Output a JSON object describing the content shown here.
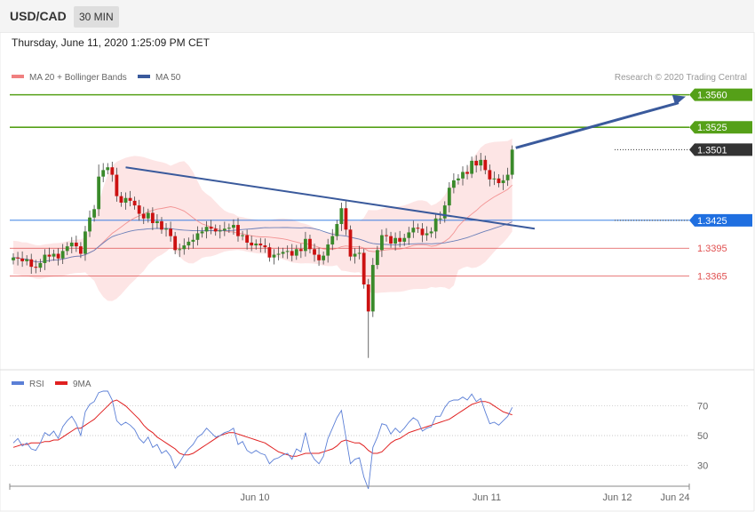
{
  "header": {
    "symbol": "USD/CAD",
    "timeframe": "30 MIN"
  },
  "timestamp": "Thursday, June 11, 2020 1:25:09 PM CET",
  "legend": {
    "ma20": {
      "label": "MA 20 + Bollinger Bands",
      "color": "#f08080"
    },
    "ma50": {
      "label": "MA 50",
      "color": "#3a5a9c"
    }
  },
  "credit": "Research © 2020 Trading Central",
  "rsi_legend": {
    "rsi": {
      "label": "RSI",
      "color": "#5b7fd6"
    },
    "ma9": {
      "label": "9MA",
      "color": "#e02020"
    }
  },
  "colors": {
    "up": "#3a8a2a",
    "down": "#cc1111",
    "support": "#e05050",
    "target": "#55a018",
    "pivot": "#1f6fe0",
    "last": "#333333"
  },
  "chart_data": [
    {
      "type": "candlestick",
      "y_range": [
        1.327,
        1.3595
      ],
      "levels": [
        {
          "name": "target-2",
          "label": "1.3560",
          "value": 1.356,
          "kind": "target"
        },
        {
          "name": "target-1",
          "label": "1.3525",
          "value": 1.3525,
          "kind": "target"
        },
        {
          "name": "last-price",
          "label": "1.3501",
          "value": 1.3501,
          "kind": "last"
        },
        {
          "name": "pivot",
          "label": "1.3425",
          "value": 1.3425,
          "kind": "pivot"
        },
        {
          "name": "support-1",
          "label": "1.3395",
          "value": 1.3395,
          "kind": "support"
        },
        {
          "name": "support-2",
          "label": "1.3365",
          "value": 1.3365,
          "kind": "support"
        }
      ],
      "x_ticks": [
        "Jun 10",
        "Jun 11",
        "Jun 12",
        "Jun 24"
      ],
      "close": [
        1.3385,
        1.3384,
        1.3381,
        1.3383,
        1.3375,
        1.3374,
        1.3379,
        1.3388,
        1.3386,
        1.3389,
        1.3384,
        1.3392,
        1.3397,
        1.3401,
        1.3397,
        1.3389,
        1.3413,
        1.3428,
        1.3437,
        1.3472,
        1.3479,
        1.3482,
        1.3474,
        1.3451,
        1.3444,
        1.3449,
        1.3446,
        1.3441,
        1.3432,
        1.3427,
        1.3433,
        1.3422,
        1.3424,
        1.3415,
        1.3416,
        1.3408,
        1.3393,
        1.3394,
        1.3398,
        1.3402,
        1.3404,
        1.3411,
        1.3413,
        1.3418,
        1.3416,
        1.3413,
        1.3414,
        1.3416,
        1.3417,
        1.342,
        1.3408,
        1.3409,
        1.3401,
        1.3398,
        1.34,
        1.3398,
        1.3396,
        1.3385,
        1.3388,
        1.3389,
        1.3391,
        1.3392,
        1.3387,
        1.3394,
        1.3392,
        1.3405,
        1.3394,
        1.3388,
        1.3382,
        1.3387,
        1.3399,
        1.3408,
        1.3421,
        1.3438,
        1.3415,
        1.3386,
        1.3389,
        1.339,
        1.3356,
        1.3327,
        1.3377,
        1.3393,
        1.3409,
        1.3408,
        1.34,
        1.3406,
        1.3402,
        1.3406,
        1.3412,
        1.3417,
        1.3416,
        1.3409,
        1.3411,
        1.3413,
        1.3427,
        1.3427,
        1.3441,
        1.346,
        1.3468,
        1.347,
        1.3477,
        1.3475,
        1.3489,
        1.3484,
        1.349,
        1.3479,
        1.3469,
        1.347,
        1.3465,
        1.3468,
        1.3474,
        1.3501
      ]
    },
    {
      "type": "line",
      "name": "RSI",
      "y_range": [
        20,
        80
      ],
      "ref_lines": [
        70,
        50,
        30
      ],
      "ref_labels": [
        "70",
        "50",
        "30"
      ],
      "rsi": [
        45,
        48,
        43,
        45,
        41,
        40,
        45,
        52,
        50,
        53,
        48,
        56,
        60,
        63,
        58,
        50,
        66,
        71,
        73,
        79,
        80,
        80,
        74,
        60,
        57,
        59,
        57,
        54,
        48,
        45,
        49,
        42,
        44,
        38,
        40,
        36,
        28,
        32,
        37,
        41,
        44,
        49,
        51,
        55,
        52,
        49,
        50,
        52,
        53,
        55,
        44,
        46,
        40,
        38,
        40,
        38,
        37,
        31,
        34,
        35,
        37,
        38,
        34,
        41,
        39,
        52,
        39,
        34,
        31,
        36,
        48,
        55,
        62,
        67,
        49,
        31,
        34,
        35,
        22,
        14,
        42,
        49,
        58,
        57,
        51,
        55,
        52,
        55,
        59,
        62,
        60,
        53,
        55,
        56,
        63,
        63,
        69,
        73,
        74,
        74,
        76,
        74,
        78,
        73,
        75,
        66,
        58,
        59,
        57,
        60,
        63,
        69
      ],
      "ma9": [
        42,
        43,
        44,
        44,
        45,
        45,
        45,
        46,
        46,
        47,
        47,
        49,
        51,
        53,
        55,
        55,
        57,
        59,
        61,
        64,
        67,
        70,
        73,
        74,
        72,
        70,
        67,
        64,
        61,
        57,
        54,
        52,
        49,
        47,
        45,
        43,
        41,
        38,
        37,
        37,
        38,
        40,
        42,
        44,
        46,
        48,
        50,
        51,
        52,
        52,
        51,
        50,
        49,
        48,
        47,
        46,
        45,
        43,
        41,
        39,
        38,
        37,
        36,
        36,
        37,
        38,
        38,
        38,
        38,
        39,
        40,
        41,
        43,
        46,
        47,
        46,
        45,
        45,
        43,
        40,
        38,
        38,
        39,
        42,
        45,
        47,
        48,
        50,
        52,
        53,
        54,
        55,
        56,
        57,
        58,
        59,
        60,
        61,
        63,
        65,
        67,
        69,
        71,
        72,
        73,
        73,
        72,
        70,
        68,
        66,
        65,
        64
      ]
    }
  ]
}
